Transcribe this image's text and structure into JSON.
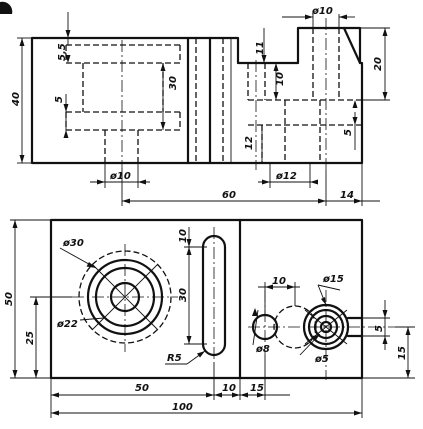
{
  "front_view": {
    "dims": {
      "d10_top": "ø10",
      "h40": "40",
      "h20": "20",
      "v11": "11",
      "v10": "10",
      "v30": "30",
      "v55": "5,5",
      "v5_left": "5",
      "v12": "12",
      "v5_right": "5",
      "d10_bottom": "ø10",
      "d12": "ø12",
      "l60": "60",
      "l14": "14"
    }
  },
  "top_view": {
    "dims": {
      "h50": "50",
      "h25": "25",
      "d30": "ø30",
      "d22": "ø22",
      "v10": "10",
      "v30": "30",
      "r5": "R5",
      "l10_hole": "10",
      "d15": "ø15",
      "d8": "ø8",
      "d5": "ø5",
      "v5_right": "5",
      "v15_right": "15",
      "l50": "50",
      "l10": "10",
      "l15": "15",
      "l100": "100"
    }
  }
}
